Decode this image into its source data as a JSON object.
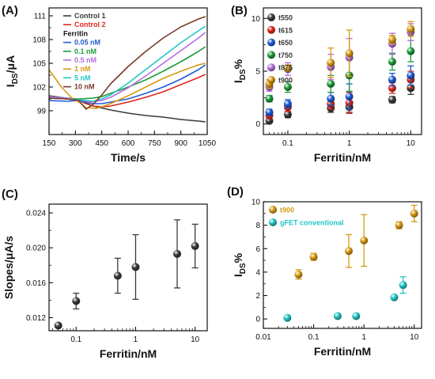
{
  "chart_data": [
    {
      "panel": "(A)",
      "type": "line",
      "xlabel": "Time/s",
      "ylabel": "IDS/μA",
      "ylabel_main": "I",
      "ylabel_sub": "DS",
      "ylabel_rest": "/μA",
      "xlim": [
        150,
        1050
      ],
      "ylim": [
        96,
        112
      ],
      "x_ticks": [
        150,
        300,
        450,
        600,
        750,
        900,
        1050
      ],
      "y_ticks": [
        99,
        102,
        105,
        108,
        111
      ],
      "legend_heading": "Ferritin",
      "series": [
        {
          "name": "Control 1",
          "color": "#3a3a3a",
          "x": [
            150,
            250,
            320,
            350,
            400,
            500,
            600,
            700,
            800,
            900,
            1000,
            1040
          ],
          "y": [
            100.9,
            100.6,
            100.4,
            100.0,
            99.6,
            99.1,
            98.7,
            98.4,
            98.2,
            97.9,
            97.7,
            97.6
          ]
        },
        {
          "name": "Control 2",
          "color": "#e0281c",
          "x": [
            150,
            250,
            320,
            400,
            450,
            500,
            600,
            700,
            800,
            900,
            1000,
            1040
          ],
          "y": [
            100.6,
            100.5,
            100.4,
            99.6,
            99.5,
            99.6,
            100.1,
            100.7,
            101.4,
            102.3,
            103.2,
            103.6
          ]
        },
        {
          "name": "0.05 nM",
          "color": "#1f5bd6",
          "x": [
            150,
            250,
            320,
            400,
            450,
            500,
            600,
            700,
            800,
            900,
            1000,
            1040
          ],
          "y": [
            100.3,
            100.2,
            100.3,
            99.9,
            99.9,
            100.1,
            100.5,
            101.2,
            102.0,
            103.0,
            104.2,
            104.8
          ]
        },
        {
          "name": "0.1 nM",
          "color": "#1e9a3a",
          "x": [
            150,
            250,
            320,
            400,
            450,
            500,
            600,
            700,
            800,
            900,
            1000,
            1040
          ],
          "y": [
            100.8,
            100.6,
            100.5,
            100.6,
            100.8,
            101.2,
            102.0,
            102.9,
            104.0,
            105.2,
            106.5,
            107.1
          ]
        },
        {
          "name": "0.5 nM",
          "color": "#b56ddd",
          "x": [
            150,
            250,
            320,
            380,
            450,
            500,
            600,
            700,
            800,
            900,
            1000,
            1040
          ],
          "y": [
            100.8,
            100.6,
            100.4,
            100.1,
            100.3,
            100.7,
            101.9,
            103.4,
            105.0,
            106.6,
            108.2,
            108.9
          ]
        },
        {
          "name": "1 nM",
          "color": "#d79a12",
          "x": [
            150,
            220,
            280,
            320,
            360,
            420,
            500,
            600,
            700,
            800,
            900,
            1000,
            1040
          ],
          "y": [
            104.2,
            102.0,
            100.6,
            100.1,
            99.4,
            99.3,
            99.9,
            100.9,
            102.0,
            103.1,
            104.0,
            104.8,
            105.0
          ]
        },
        {
          "name": "5 nM",
          "color": "#22c6c6",
          "x": [
            150,
            250,
            320,
            400,
            450,
            500,
            600,
            700,
            800,
            900,
            1000,
            1040
          ],
          "y": [
            100.6,
            100.5,
            100.4,
            100.2,
            100.5,
            101.0,
            102.5,
            104.2,
            105.9,
            107.6,
            109.1,
            109.7
          ]
        },
        {
          "name": "10 nM",
          "color": "#7a3a2a",
          "x": [
            150,
            250,
            320,
            360,
            400,
            450,
            500,
            600,
            700,
            800,
            900,
            1000,
            1040
          ],
          "y": [
            100.6,
            100.5,
            100.3,
            99.2,
            99.8,
            101.0,
            102.4,
            104.6,
            106.5,
            108.2,
            109.6,
            110.6,
            110.9
          ]
        }
      ]
    },
    {
      "panel": "(B)",
      "type": "scatter",
      "xlabel": "Ferritin/nM",
      "ylabel": "IDS%",
      "ylabel_main": "I",
      "ylabel_sub": "DS",
      "ylabel_rest": "%",
      "xscale": "log",
      "xlim": [
        0.04,
        15
      ],
      "ylim": [
        -1,
        11
      ],
      "x_ticks": [
        0.1,
        1,
        10
      ],
      "x_tick_labels": [
        "0.1",
        "1",
        "10"
      ],
      "y_ticks": [
        0,
        5,
        10
      ],
      "series": [
        {
          "name": "t550",
          "color": "#3a3a3a",
          "x": [
            0.05,
            0.1,
            0.5,
            1,
            5,
            10
          ],
          "y": [
            0.3,
            0.9,
            1.5,
            1.6,
            2.3,
            3.4
          ],
          "err": [
            0.2,
            0.3,
            0.4,
            0.5,
            0.3,
            0.6
          ]
        },
        {
          "name": "t615",
          "color": "#e0281c",
          "x": [
            0.05,
            0.1,
            0.5,
            1,
            5,
            10
          ],
          "y": [
            0.8,
            1.6,
            1.9,
            2.0,
            3.4,
            4.2
          ],
          "err": [
            0.3,
            0.4,
            0.5,
            1.0,
            0.5,
            0.8
          ]
        },
        {
          "name": "t650",
          "color": "#1f5bd6",
          "x": [
            0.05,
            0.1,
            0.5,
            1,
            5,
            10
          ],
          "y": [
            1.1,
            1.9,
            2.4,
            2.6,
            4.2,
            4.6
          ],
          "err": [
            0.3,
            0.4,
            0.6,
            1.2,
            0.6,
            0.9
          ]
        },
        {
          "name": "t750",
          "color": "#1e9a3a",
          "x": [
            0.05,
            0.1,
            0.5,
            1,
            5,
            10
          ],
          "y": [
            2.4,
            3.5,
            3.8,
            4.6,
            5.9,
            6.9
          ],
          "err": [
            0.3,
            0.5,
            0.8,
            1.5,
            0.8,
            1.0
          ]
        },
        {
          "name": "t875",
          "color": "#b56ddd",
          "x": [
            0.05,
            0.1,
            0.5,
            1,
            5,
            10
          ],
          "y": [
            3.5,
            5.2,
            5.4,
            6.3,
            7.6,
            8.7
          ],
          "err": [
            0.4,
            0.6,
            1.2,
            1.8,
            1.0,
            0.8
          ]
        },
        {
          "name": "t900",
          "color": "#d79a12",
          "x": [
            0.05,
            0.1,
            0.5,
            1,
            5,
            10
          ],
          "y": [
            3.8,
            5.3,
            5.8,
            6.7,
            8.0,
            9.0
          ],
          "err": [
            0.4,
            0.3,
            1.4,
            2.2,
            0.4,
            0.7
          ]
        }
      ]
    },
    {
      "panel": "(C)",
      "type": "scatter",
      "xlabel": "Ferritin/nM",
      "ylabel": "Slopes/μA/s",
      "xscale": "log",
      "xlim": [
        0.035,
        16
      ],
      "ylim": [
        0.0105,
        0.025
      ],
      "x_ticks": [
        0.1,
        1,
        10
      ],
      "x_tick_labels": [
        "0.1",
        "1",
        "10"
      ],
      "y_ticks": [
        0.012,
        0.016,
        0.02,
        0.024
      ],
      "y_tick_labels": [
        "0.012",
        "0.016",
        "0.020",
        "0.024"
      ],
      "series": [
        {
          "color": "#3a3a3a",
          "x": [
            0.05,
            0.1,
            0.5,
            1,
            5,
            10
          ],
          "y": [
            0.0111,
            0.0139,
            0.0168,
            0.0178,
            0.0193,
            0.0202
          ],
          "err": [
            0.0002,
            0.0009,
            0.002,
            0.0037,
            0.0039,
            0.0025
          ]
        }
      ]
    },
    {
      "panel": "(D)",
      "type": "scatter",
      "xlabel": "Ferritin/nM",
      "ylabel": "IDS%",
      "ylabel_main": "I",
      "ylabel_sub": "DS",
      "ylabel_rest": "%",
      "xscale": "log",
      "xlim": [
        0.01,
        14
      ],
      "ylim": [
        -0.8,
        10
      ],
      "x_ticks": [
        0.01,
        0.1,
        1,
        10
      ],
      "x_tick_labels": [
        "0.01",
        "0.1",
        "1",
        "10"
      ],
      "y_ticks": [
        0,
        2,
        4,
        6,
        8,
        10
      ],
      "series": [
        {
          "name": "t900",
          "color": "#d79a12",
          "x": [
            0.05,
            0.1,
            0.5,
            1,
            5,
            10
          ],
          "y": [
            3.8,
            5.3,
            5.8,
            6.7,
            8.0,
            9.0
          ],
          "err": [
            0.4,
            0.3,
            1.4,
            2.2,
            0.3,
            0.7
          ]
        },
        {
          "name": "gFET conventional",
          "color": "#22c6c6",
          "x": [
            0.03,
            0.3,
            0.7,
            4,
            6
          ],
          "y": [
            0.1,
            0.25,
            0.25,
            1.85,
            2.9
          ],
          "err": [
            0,
            0,
            0,
            0,
            0.7
          ]
        }
      ]
    }
  ]
}
